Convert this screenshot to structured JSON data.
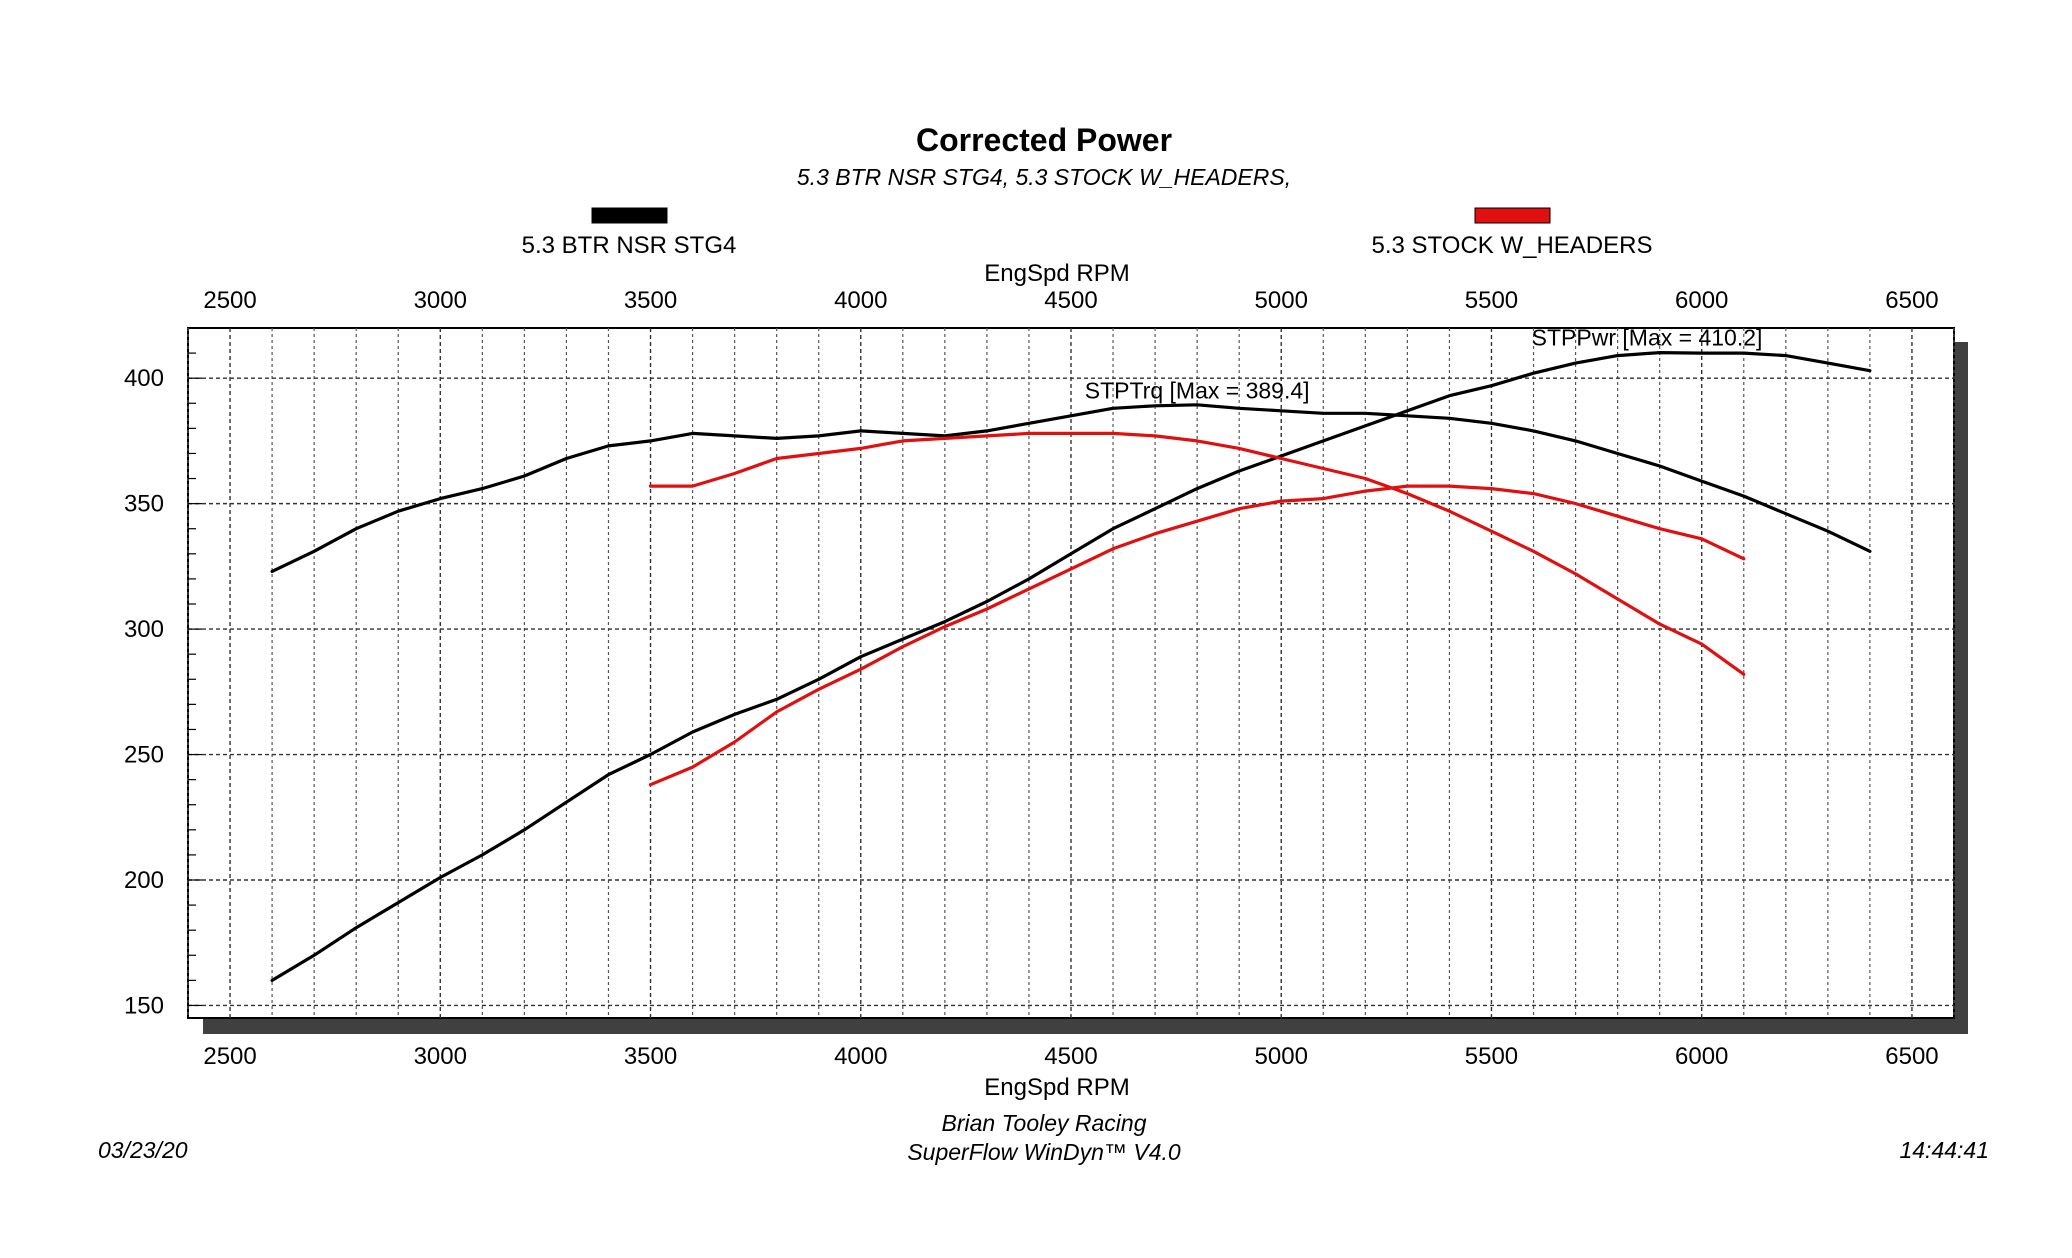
{
  "chart_data": {
    "type": "line",
    "title": "Corrected Power",
    "subtitle": "5.3 BTR NSR STG4, 5.3 STOCK W_HEADERS,",
    "xlabel": "EngSpd RPM",
    "ylabel": "",
    "xlim": [
      2400,
      6600
    ],
    "ylim": [
      145,
      420
    ],
    "x_ticks": [
      2500,
      3000,
      3500,
      4000,
      4500,
      5000,
      5500,
      6000,
      6500
    ],
    "y_ticks": [
      150,
      200,
      250,
      300,
      350,
      400
    ],
    "grid": true,
    "legend": [
      {
        "label": "5.3 BTR NSR STG4",
        "color": "#000000"
      },
      {
        "label": "5.3 STOCK W_HEADERS",
        "color": "#e01010"
      }
    ],
    "annotations": [
      {
        "text": "STPPwr [Max = 410.2]",
        "x": 5870,
        "y": 413
      },
      {
        "text": "STPTrq [Max = 389.4]",
        "x": 4800,
        "y": 392
      }
    ],
    "series": [
      {
        "name": "5.3 BTR NSR STG4 STPTrq",
        "color": "#000000",
        "x": [
          2600,
          2700,
          2800,
          2900,
          3000,
          3100,
          3200,
          3300,
          3400,
          3500,
          3600,
          3700,
          3800,
          3900,
          4000,
          4100,
          4200,
          4300,
          4400,
          4500,
          4600,
          4700,
          4800,
          4900,
          5000,
          5100,
          5200,
          5300,
          5400,
          5500,
          5600,
          5700,
          5800,
          5900,
          6000,
          6100,
          6200,
          6300,
          6400
        ],
        "values": [
          323,
          331,
          340,
          347,
          352,
          356,
          361,
          368,
          373,
          375,
          378,
          377,
          376,
          377,
          379,
          378,
          377,
          379,
          382,
          385,
          388,
          389,
          389.4,
          388,
          387,
          386,
          386,
          385,
          384,
          382,
          379,
          375,
          370,
          365,
          359,
          353,
          346,
          339,
          331
        ]
      },
      {
        "name": "5.3 BTR NSR STG4 STPPwr",
        "color": "#000000",
        "x": [
          2600,
          2700,
          2800,
          2900,
          3000,
          3100,
          3200,
          3300,
          3400,
          3500,
          3600,
          3700,
          3800,
          3900,
          4000,
          4100,
          4200,
          4300,
          4400,
          4500,
          4600,
          4700,
          4800,
          4900,
          5000,
          5100,
          5200,
          5300,
          5400,
          5500,
          5600,
          5700,
          5800,
          5900,
          6000,
          6100,
          6200,
          6300,
          6400
        ],
        "values": [
          160,
          170,
          181,
          191,
          201,
          210,
          220,
          231,
          242,
          250,
          259,
          266,
          272,
          280,
          289,
          296,
          303,
          311,
          320,
          330,
          340,
          348,
          356,
          363,
          369,
          375,
          381,
          387,
          393,
          397,
          402,
          406,
          409,
          410.2,
          410,
          410,
          409,
          406,
          403
        ]
      },
      {
        "name": "5.3 STOCK W_HEADERS STPTrq",
        "color": "#e01010",
        "x": [
          3500,
          3600,
          3700,
          3800,
          3900,
          4000,
          4100,
          4200,
          4300,
          4400,
          4500,
          4600,
          4700,
          4800,
          4900,
          5000,
          5100,
          5200,
          5300,
          5400,
          5500,
          5600,
          5700,
          5800,
          5900,
          6000,
          6100
        ],
        "values": [
          357,
          357,
          362,
          368,
          370,
          372,
          375,
          376,
          377,
          378,
          378,
          378,
          377,
          375,
          372,
          368,
          364,
          360,
          354,
          347,
          339,
          331,
          322,
          312,
          302,
          294,
          282
        ]
      },
      {
        "name": "5.3 STOCK W_HEADERS STPPwr",
        "color": "#e01010",
        "x": [
          3500,
          3600,
          3700,
          3800,
          3900,
          4000,
          4100,
          4200,
          4300,
          4400,
          4500,
          4600,
          4700,
          4800,
          4900,
          5000,
          5100,
          5200,
          5300,
          5400,
          5500,
          5600,
          5700,
          5800,
          5900,
          6000,
          6100
        ],
        "values": [
          238,
          245,
          255,
          267,
          276,
          284,
          293,
          301,
          308,
          316,
          324,
          332,
          338,
          343,
          348,
          351,
          352,
          355,
          357,
          357,
          356,
          354,
          350,
          345,
          340,
          336,
          328
        ]
      }
    ]
  },
  "footer": {
    "date": "03/23/20",
    "company": "Brian Tooley Racing",
    "software": "SuperFlow WinDyn™ V4.0",
    "time": "14:44:41"
  }
}
